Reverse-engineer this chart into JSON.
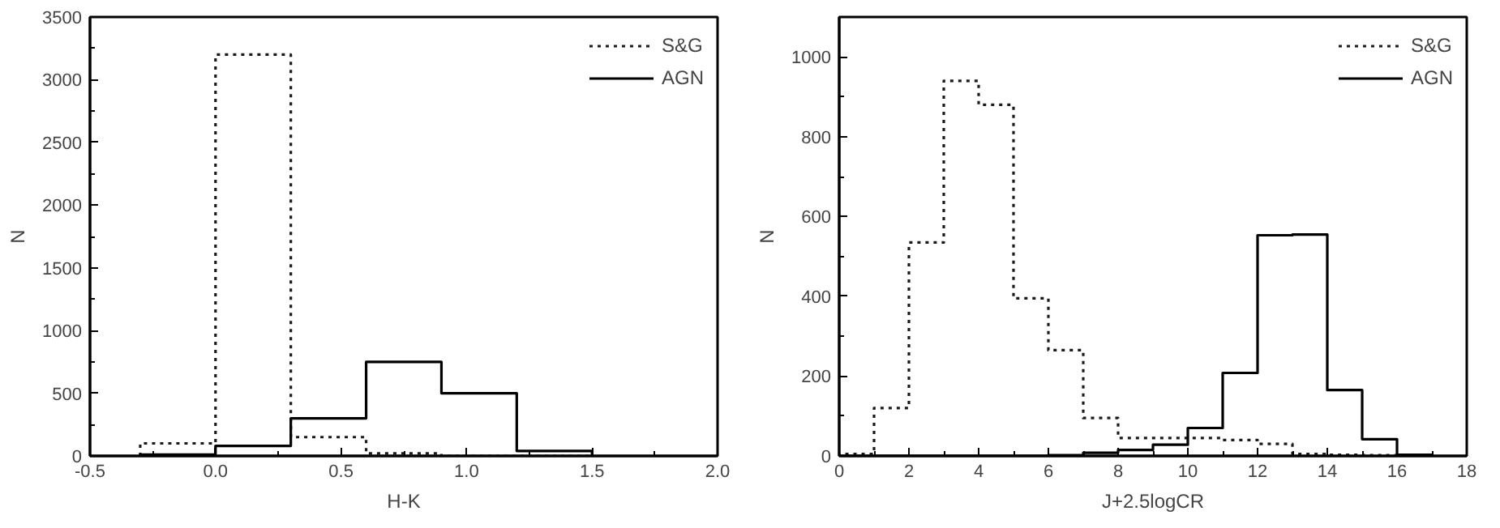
{
  "chart_data": [
    {
      "type": "histogram",
      "xlabel": "H-K",
      "ylabel": "N",
      "xlim": [
        -0.5,
        2.0
      ],
      "ylim": [
        0,
        3500
      ],
      "xticks": [
        {
          "value": -0.5,
          "label": "-0.5"
        },
        {
          "value": 0,
          "label": "0.0"
        },
        {
          "value": 0.5,
          "label": "0.5"
        },
        {
          "value": 1,
          "label": "1.0"
        },
        {
          "value": 1.5,
          "label": "1.5"
        },
        {
          "value": 2,
          "label": "2.0"
        }
      ],
      "yticks": [
        0,
        500,
        1000,
        1500,
        2000,
        2500,
        3000,
        3500
      ],
      "legend": "top right",
      "grid": false,
      "bins": [
        -0.3,
        0,
        0.3,
        0.6,
        0.9,
        1.2,
        1.5
      ],
      "series": [
        {
          "name": "S&G",
          "color": "#1a1a1a",
          "line_style": "dotted",
          "values": [
            100,
            3200,
            150,
            20,
            0,
            0
          ]
        },
        {
          "name": "AGN",
          "color": "#000000",
          "line_style": "solid",
          "values": [
            10,
            80,
            300,
            750,
            500,
            40
          ]
        }
      ]
    },
    {
      "type": "histogram",
      "xlabel": "J+2.5logCR",
      "ylabel": "N",
      "xlim": [
        0,
        18
      ],
      "ylim": [
        0,
        1100
      ],
      "xticks": [
        0,
        2,
        4,
        6,
        8,
        10,
        12,
        14,
        16,
        18
      ],
      "yticks": [
        0,
        200,
        400,
        600,
        800,
        1000
      ],
      "legend": "top right",
      "grid": false,
      "bins": [
        0,
        1,
        2,
        3,
        4,
        5,
        6,
        7,
        8,
        9,
        10,
        11,
        12,
        13,
        14,
        15,
        16,
        17
      ],
      "series": [
        {
          "name": "S&G",
          "color": "#1a1a1a",
          "line_style": "dotted",
          "values": [
            5,
            120,
            535,
            940,
            880,
            395,
            265,
            95,
            45,
            45,
            45,
            40,
            30,
            5,
            3,
            2,
            0
          ]
        },
        {
          "name": "AGN",
          "color": "#000000",
          "line_style": "solid",
          "values": [
            0,
            0,
            0,
            0,
            0,
            0,
            2,
            8,
            15,
            28,
            70,
            208,
            553,
            555,
            165,
            42,
            3
          ]
        }
      ]
    }
  ]
}
